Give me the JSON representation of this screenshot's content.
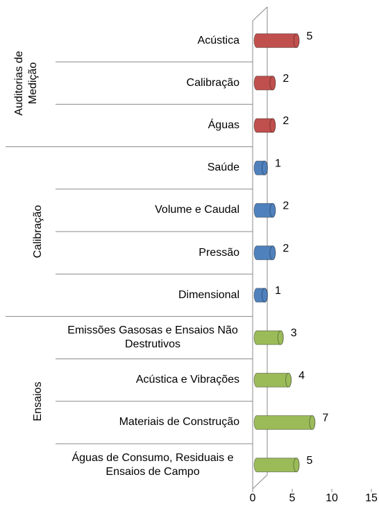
{
  "chart_data": {
    "type": "cylinder-bar",
    "series": [
      {
        "name": "Auditorias de Medição",
        "color": "#c0504d",
        "categories": [
          "Acústica",
          "Calibração",
          "Águas"
        ],
        "values": [
          5,
          2,
          2
        ]
      },
      {
        "name": "Calibração",
        "color": "#4f81bd",
        "categories": [
          "Saúde",
          "Volume e Caudal",
          "Pressão",
          "Dimensional"
        ],
        "values": [
          1,
          2,
          2,
          1
        ]
      },
      {
        "name": "Ensaios",
        "color": "#9bbb59",
        "categories": [
          "Emissões Gasosas e Ensaios Não Destrutivos",
          "Acústica e Vibrações",
          "Materiais de Construção",
          "Águas de Consumo, Residuais e Ensaios de Campo"
        ],
        "values": [
          3,
          4,
          7,
          5
        ]
      }
    ],
    "xlim": [
      0,
      15
    ],
    "xticks": [
      0,
      5,
      10,
      15
    ]
  }
}
